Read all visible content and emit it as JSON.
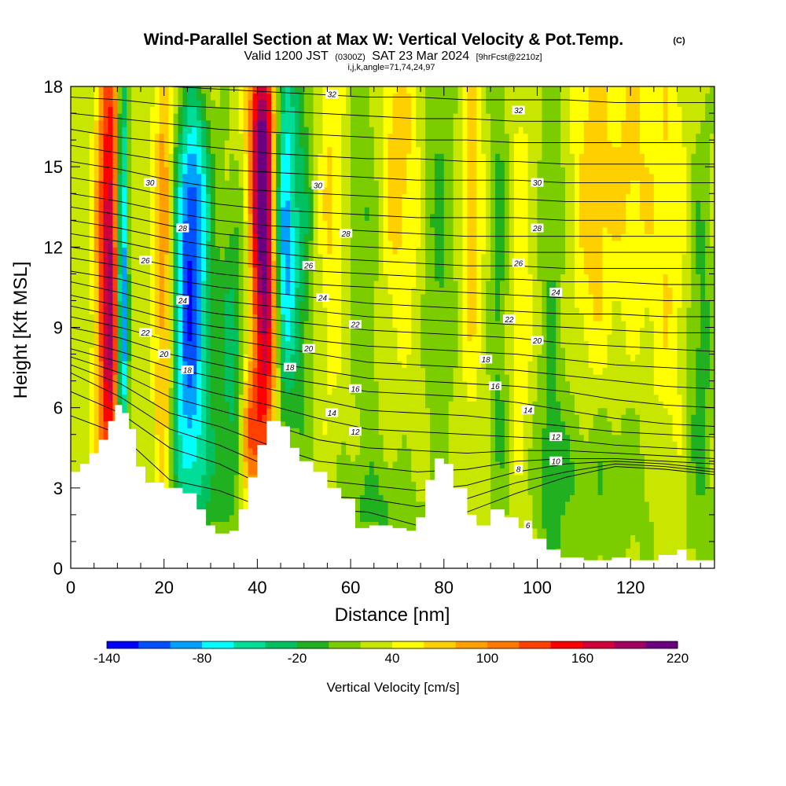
{
  "chart_data": {
    "type": "heatmap",
    "title": "Wind-Parallel Section at Max W: Vertical Velocity & Pot.Temp.",
    "title_mark": "(C)",
    "subtitle_main_a": "Valid 1200 JST",
    "subtitle_utc": "(0300Z)",
    "subtitle_main_b": "SAT 23 Mar 2024",
    "subtitle_fcst": "[9hrFcst@2210z]",
    "subtitle_indices": "i,j,k,angle=71,74,24,97",
    "xlabel": "Distance [nm]",
    "ylabel": "Height [Kft MSL]",
    "xlim": [
      0,
      138
    ],
    "ylim": [
      0,
      18
    ],
    "x_ticks": [
      "0",
      "20",
      "40",
      "60",
      "80",
      "100",
      "120"
    ],
    "y_ticks": [
      "0",
      "3",
      "6",
      "9",
      "12",
      "15",
      "18"
    ],
    "colorbar": {
      "label": "Vertical Velocity [cm/s]",
      "min": -140,
      "max": 220,
      "step": 20,
      "tick_labels": [
        "-140",
        "-80",
        "-20",
        "40",
        "100",
        "160",
        "220"
      ],
      "colors": [
        "#0000ff",
        "#0050ff",
        "#00a0ff",
        "#00ffff",
        "#00dd99",
        "#00c060",
        "#20b020",
        "#7ccd00",
        "#c8e600",
        "#ffff00",
        "#ffd000",
        "#ffa000",
        "#ff7800",
        "#ff4000",
        "#ff0000",
        "#d0003a",
        "#a00060",
        "#6a0080"
      ]
    },
    "terrain_kft": [
      [
        0,
        3.6
      ],
      [
        2,
        3.9
      ],
      [
        4,
        4.3
      ],
      [
        6,
        4.8
      ],
      [
        8,
        5.5
      ],
      [
        9.5,
        6.1
      ],
      [
        11,
        5.8
      ],
      [
        12.5,
        5.2
      ],
      [
        14,
        3.8
      ],
      [
        16,
        3.2
      ],
      [
        20,
        3.0
      ],
      [
        24,
        2.8
      ],
      [
        27,
        2.2
      ],
      [
        29,
        1.6
      ],
      [
        31,
        1.3
      ],
      [
        34,
        1.4
      ],
      [
        36,
        2.2
      ],
      [
        38,
        3.4
      ],
      [
        40,
        4.6
      ],
      [
        42,
        5.5
      ],
      [
        45,
        5.3
      ],
      [
        47,
        4.5
      ],
      [
        49,
        4.0
      ],
      [
        52,
        3.6
      ],
      [
        55,
        3.0
      ],
      [
        58,
        2.6
      ],
      [
        61,
        1.5
      ],
      [
        64,
        1.6
      ],
      [
        66,
        1.6
      ],
      [
        69,
        1.5
      ],
      [
        72,
        1.4
      ],
      [
        74,
        1.9
      ],
      [
        76,
        3.3
      ],
      [
        78,
        4.1
      ],
      [
        80,
        3.9
      ],
      [
        82,
        3.0
      ],
      [
        85,
        2.0
      ],
      [
        87,
        1.6
      ],
      [
        90,
        2.2
      ],
      [
        93,
        1.9
      ],
      [
        96,
        1.5
      ],
      [
        99,
        1.1
      ],
      [
        102,
        0.7
      ],
      [
        105,
        0.4
      ],
      [
        110,
        0.3
      ],
      [
        116,
        0.4
      ],
      [
        120,
        0.3
      ],
      [
        126,
        0.5
      ],
      [
        130,
        0.7
      ],
      [
        132,
        0.3
      ],
      [
        138,
        0.3
      ]
    ],
    "w_features": [
      {
        "x": 9.0,
        "y": 10.5,
        "sx": 1.8,
        "sy": 7.0,
        "amp": 140
      },
      {
        "x": 11.0,
        "y": 10.5,
        "sx": 0.9,
        "sy": 6.0,
        "amp": -200
      },
      {
        "x": 7.0,
        "y": 11.0,
        "sx": 1.4,
        "sy": 8.0,
        "amp": 50
      },
      {
        "x": 20.0,
        "y": 11.0,
        "sx": 1.4,
        "sy": 7.0,
        "amp": 80
      },
      {
        "x": 25.5,
        "y": 9.0,
        "sx": 2.8,
        "sy": 4.5,
        "amp": -140
      },
      {
        "x": 26.5,
        "y": 14.5,
        "sx": 2.5,
        "sy": 2.5,
        "amp": -70
      },
      {
        "x": 35.0,
        "y": 8.0,
        "sx": 2.5,
        "sy": 4.0,
        "amp": -60
      },
      {
        "x": 38.0,
        "y": 5.0,
        "sx": 1.4,
        "sy": 1.8,
        "amp": 90
      },
      {
        "x": 41.5,
        "y": 11.0,
        "sx": 2.0,
        "sy": 5.5,
        "amp": 170
      },
      {
        "x": 40.5,
        "y": 16.5,
        "sx": 1.8,
        "sy": 3.0,
        "amp": 90
      },
      {
        "x": 45.5,
        "y": 12.5,
        "sx": 1.6,
        "sy": 4.5,
        "amp": -120
      },
      {
        "x": 49.0,
        "y": 12.5,
        "sx": 2.2,
        "sy": 6.0,
        "amp": -55
      },
      {
        "x": 56.0,
        "y": 14.0,
        "sx": 2.0,
        "sy": 5.0,
        "amp": 35
      },
      {
        "x": 63.0,
        "y": 13.0,
        "sx": 3.0,
        "sy": 6.0,
        "amp": -30
      },
      {
        "x": 70.0,
        "y": 15.0,
        "sx": 3.0,
        "sy": 4.0,
        "amp": 45
      },
      {
        "x": 79.0,
        "y": 12.0,
        "sx": 2.2,
        "sy": 6.0,
        "amp": -35
      },
      {
        "x": 86.0,
        "y": 14.0,
        "sx": 1.5,
        "sy": 5.0,
        "amp": 45
      },
      {
        "x": 92.0,
        "y": 11.0,
        "sx": 1.5,
        "sy": 7.0,
        "amp": -40
      },
      {
        "x": 96.0,
        "y": 10.0,
        "sx": 2.0,
        "sy": 6.0,
        "amp": 25
      },
      {
        "x": 103.0,
        "y": 9.0,
        "sx": 2.0,
        "sy": 8.0,
        "amp": -30
      },
      {
        "x": 112.0,
        "y": 14.5,
        "sx": 2.8,
        "sy": 5.0,
        "amp": 45
      },
      {
        "x": 120.0,
        "y": 15.0,
        "sx": 3.0,
        "sy": 4.0,
        "amp": 35
      },
      {
        "x": 128.0,
        "y": 13.0,
        "sx": 3.0,
        "sy": 7.0,
        "amp": 30
      },
      {
        "x": 135.0,
        "y": 8.0,
        "sx": 2.0,
        "sy": 6.0,
        "amp": -40
      },
      {
        "x": 112.0,
        "y": 3.0,
        "sx": 10.0,
        "sy": 2.5,
        "amp": -30
      },
      {
        "x": 66.0,
        "y": 2.2,
        "sx": 6.0,
        "sy": 1.5,
        "amp": -30
      },
      {
        "x": 28.0,
        "y": 3.2,
        "sx": 5.0,
        "sy": 2.0,
        "amp": -30
      }
    ],
    "theta_lines": [
      {
        "y": [
          5.7,
          5.0,
          3.3,
          2.9,
          2.2,
          2.2,
          2.1,
          1.6,
          2.1,
          2.8,
          3.4,
          3.8,
          3.7,
          3.5
        ]
      },
      {
        "y": [
          6.6,
          5.8,
          4.5,
          3.9,
          3.0,
          2.7,
          2.6,
          2.3,
          2.6,
          3.2,
          3.6,
          3.9,
          3.8,
          3.6
        ]
      },
      {
        "y": [
          7.3,
          6.4,
          5.2,
          4.6,
          3.8,
          3.3,
          3.1,
          2.9,
          3.1,
          3.6,
          3.9,
          4.0,
          3.9,
          3.7
        ]
      },
      {
        "y": [
          7.6,
          6.9,
          5.8,
          5.3,
          4.6,
          4.0,
          3.8,
          3.6,
          3.7,
          4.0,
          4.1,
          4.1,
          4.0,
          3.9
        ]
      },
      {
        "y": [
          7.9,
          7.3,
          6.4,
          5.9,
          5.4,
          4.8,
          4.5,
          4.4,
          4.3,
          4.4,
          4.4,
          4.3,
          4.2,
          4.1
        ]
      },
      {
        "y": [
          8.2,
          7.7,
          7.0,
          6.5,
          6.1,
          5.6,
          5.2,
          5.1,
          5.0,
          4.9,
          4.8,
          4.6,
          4.5,
          4.4
        ]
      },
      {
        "y": [
          8.6,
          8.1,
          7.5,
          7.1,
          6.7,
          6.3,
          5.9,
          5.8,
          5.7,
          5.5,
          5.3,
          5.1,
          5.0,
          4.9
        ]
      },
      {
        "y": [
          9.0,
          8.6,
          8.0,
          7.6,
          7.2,
          6.9,
          6.6,
          6.5,
          6.4,
          6.2,
          5.9,
          5.6,
          5.4,
          5.3
        ]
      },
      {
        "y": [
          9.4,
          9.0,
          8.5,
          8.1,
          7.7,
          7.4,
          7.1,
          7.0,
          6.9,
          6.8,
          6.6,
          6.3,
          6.1,
          6.0
        ]
      },
      {
        "y": [
          9.8,
          9.4,
          8.9,
          8.6,
          8.3,
          8.0,
          7.7,
          7.6,
          7.5,
          7.4,
          7.2,
          7.0,
          6.8,
          6.7
        ]
      },
      {
        "y": [
          10.2,
          9.8,
          9.3,
          9.0,
          8.8,
          8.5,
          8.3,
          8.2,
          8.1,
          8.0,
          7.8,
          7.6,
          7.5,
          7.4
        ]
      },
      {
        "y": [
          10.7,
          10.3,
          9.8,
          9.5,
          9.3,
          9.1,
          8.9,
          8.8,
          8.7,
          8.6,
          8.4,
          8.3,
          8.2,
          8.1
        ]
      },
      {
        "y": [
          11.1,
          10.8,
          10.3,
          10.0,
          9.8,
          9.6,
          9.4,
          9.3,
          9.2,
          9.1,
          9.0,
          8.9,
          8.8,
          8.8
        ]
      },
      {
        "y": [
          11.6,
          11.3,
          10.8,
          10.5,
          10.3,
          10.1,
          9.9,
          9.8,
          9.7,
          9.6,
          9.5,
          9.5,
          9.4,
          9.4
        ]
      },
      {
        "y": [
          12.0,
          11.7,
          11.3,
          11.0,
          10.8,
          10.6,
          10.5,
          10.4,
          10.3,
          10.2,
          10.1,
          10.1,
          10.0,
          10.0
        ]
      },
      {
        "y": [
          12.5,
          12.2,
          11.8,
          11.5,
          11.3,
          11.1,
          11.0,
          10.9,
          10.8,
          10.8,
          10.7,
          10.7,
          10.6,
          10.6
        ]
      },
      {
        "y": [
          13.0,
          12.7,
          12.3,
          12.0,
          11.8,
          11.6,
          11.5,
          11.4,
          11.3,
          11.3,
          11.2,
          11.2,
          11.2,
          11.2
        ]
      },
      {
        "y": [
          13.5,
          13.2,
          12.8,
          12.5,
          12.3,
          12.1,
          12.0,
          11.9,
          11.9,
          11.8,
          11.8,
          11.8,
          11.8,
          11.8
        ]
      },
      {
        "y": [
          14.0,
          13.7,
          13.3,
          13.0,
          12.8,
          12.7,
          12.6,
          12.5,
          12.4,
          12.4,
          12.4,
          12.4,
          12.4,
          12.4
        ]
      },
      {
        "y": [
          14.6,
          14.3,
          13.9,
          13.6,
          13.4,
          13.3,
          13.2,
          13.1,
          13.1,
          13.1,
          13.0,
          13.0,
          13.0,
          13.0
        ]
      },
      {
        "y": [
          15.2,
          14.9,
          14.5,
          14.2,
          14.1,
          14.0,
          13.9,
          13.8,
          13.8,
          13.8,
          13.7,
          13.7,
          13.7,
          13.7
        ]
      },
      {
        "y": [
          15.8,
          15.5,
          15.2,
          14.9,
          14.8,
          14.7,
          14.6,
          14.5,
          14.5,
          14.5,
          14.4,
          14.4,
          14.4,
          14.4
        ]
      },
      {
        "y": [
          16.4,
          16.1,
          15.9,
          15.7,
          15.5,
          15.4,
          15.3,
          15.3,
          15.2,
          15.2,
          15.1,
          15.1,
          15.1,
          15.1
        ]
      },
      {
        "y": [
          17.0,
          16.8,
          16.6,
          16.4,
          16.3,
          16.2,
          16.1,
          16.0,
          16.0,
          15.9,
          15.9,
          15.9,
          15.9,
          15.9
        ]
      },
      {
        "y": [
          17.6,
          17.5,
          17.3,
          17.2,
          17.1,
          17.0,
          16.9,
          16.8,
          16.8,
          16.7,
          16.7,
          16.7,
          16.7,
          16.7
        ]
      },
      {
        "y": [
          18.2,
          18.1,
          18.0,
          17.9,
          17.8,
          17.7,
          17.6,
          17.6,
          17.5,
          17.5,
          17.5,
          17.4,
          17.4,
          17.4
        ]
      }
    ],
    "contour_labels": [
      {
        "text": "32",
        "x": 56,
        "y": 17.7
      },
      {
        "text": "32",
        "x": 96,
        "y": 17.1
      },
      {
        "text": "30",
        "x": 17,
        "y": 14.4
      },
      {
        "text": "30",
        "x": 53,
        "y": 14.3
      },
      {
        "text": "30",
        "x": 100,
        "y": 14.4
      },
      {
        "text": "28",
        "x": 24,
        "y": 12.7
      },
      {
        "text": "28",
        "x": 59,
        "y": 12.5
      },
      {
        "text": "28",
        "x": 100,
        "y": 12.7
      },
      {
        "text": "26",
        "x": 16,
        "y": 11.5
      },
      {
        "text": "26",
        "x": 51,
        "y": 11.3
      },
      {
        "text": "26",
        "x": 96,
        "y": 11.4
      },
      {
        "text": "24",
        "x": 24,
        "y": 10.0
      },
      {
        "text": "24",
        "x": 54,
        "y": 10.1
      },
      {
        "text": "24",
        "x": 104,
        "y": 10.3
      },
      {
        "text": "22",
        "x": 16,
        "y": 8.8
      },
      {
        "text": "22",
        "x": 61,
        "y": 9.1
      },
      {
        "text": "22",
        "x": 94,
        "y": 9.3
      },
      {
        "text": "20",
        "x": 20,
        "y": 8.0
      },
      {
        "text": "20",
        "x": 51,
        "y": 8.2
      },
      {
        "text": "20",
        "x": 100,
        "y": 8.5
      },
      {
        "text": "18",
        "x": 25,
        "y": 7.4
      },
      {
        "text": "18",
        "x": 47,
        "y": 7.5
      },
      {
        "text": "18",
        "x": 89,
        "y": 7.8
      },
      {
        "text": "16",
        "x": 61,
        "y": 6.7
      },
      {
        "text": "16",
        "x": 91,
        "y": 6.8
      },
      {
        "text": "14",
        "x": 56,
        "y": 5.8
      },
      {
        "text": "14",
        "x": 98,
        "y": 5.9
      },
      {
        "text": "12",
        "x": 61,
        "y": 5.1
      },
      {
        "text": "12",
        "x": 104,
        "y": 4.9
      },
      {
        "text": "10",
        "x": 104,
        "y": 4.0
      },
      {
        "text": "8",
        "x": 96,
        "y": 3.7
      },
      {
        "text": "6",
        "x": 98,
        "y": 1.6
      }
    ]
  }
}
